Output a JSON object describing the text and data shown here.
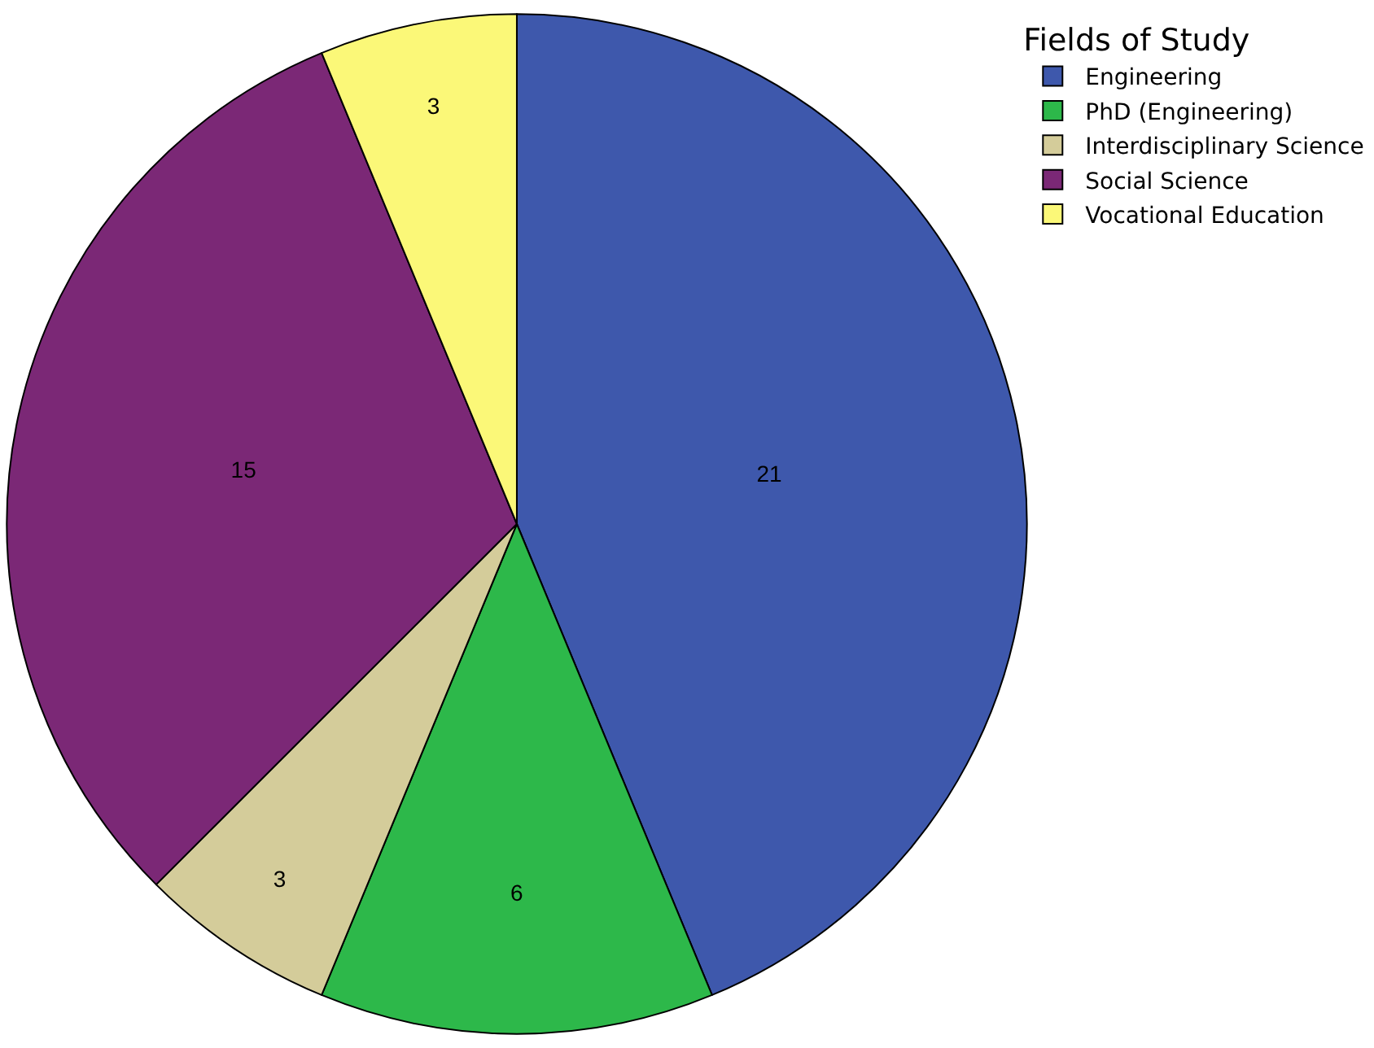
{
  "chart_data": {
    "type": "pie",
    "legend_title": "Fields of Study",
    "legend": "top right",
    "data_labels": true,
    "categories": [
      "Engineering",
      "PhD (Engineering)",
      "Interdisciplinary Science",
      "Social Science",
      "Vocational Education"
    ],
    "values": [
      21,
      6,
      3,
      15,
      3
    ],
    "colors": [
      "#3e58ac",
      "#2db84a",
      "#d4cc9a",
      "#7b2876",
      "#fbf878"
    ]
  }
}
